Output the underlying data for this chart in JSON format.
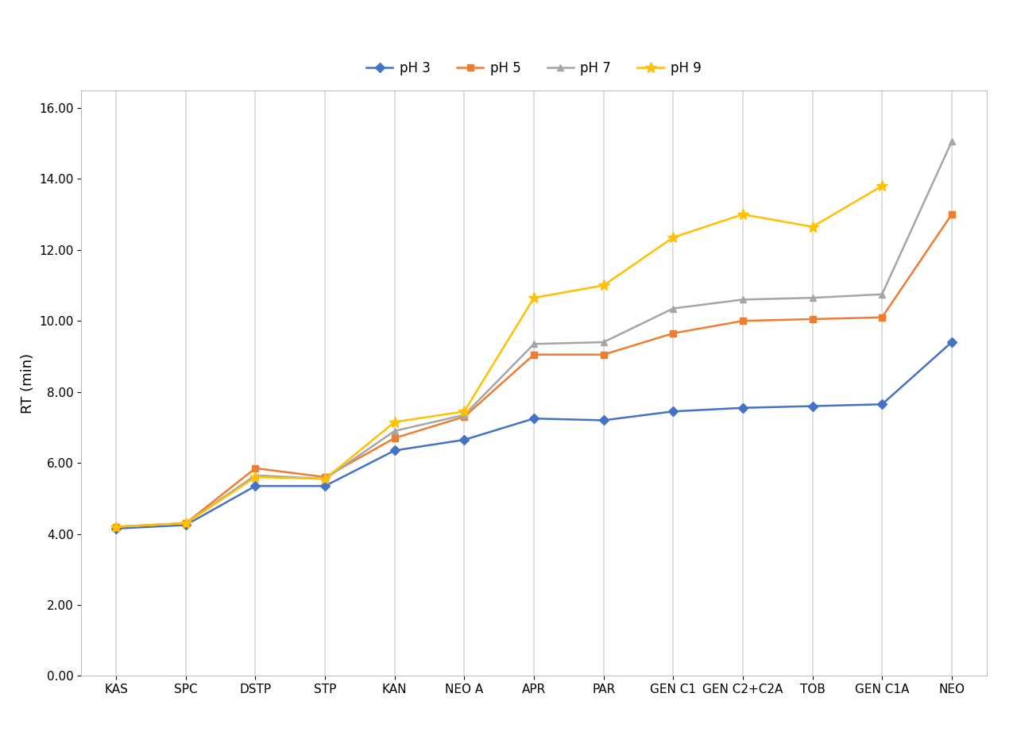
{
  "categories": [
    "KAS",
    "SPC",
    "DSTP",
    "STP",
    "KAN",
    "NEO A",
    "APR",
    "PAR",
    "GEN C1",
    "GEN C2+C2A",
    "TOB",
    "GEN C1A",
    "NEO"
  ],
  "series": {
    "pH 3": [
      4.15,
      4.25,
      5.35,
      5.35,
      6.35,
      6.65,
      7.25,
      7.2,
      7.45,
      7.55,
      7.6,
      7.65,
      9.4
    ],
    "pH 5": [
      4.2,
      4.3,
      5.85,
      5.6,
      6.7,
      7.3,
      9.05,
      9.05,
      9.65,
      10.0,
      10.05,
      10.1,
      13.0
    ],
    "pH 7": [
      4.2,
      4.3,
      5.65,
      5.55,
      6.9,
      7.35,
      9.35,
      9.4,
      10.35,
      10.6,
      10.65,
      10.75,
      15.05
    ],
    "pH 9": [
      4.2,
      4.3,
      5.6,
      5.55,
      7.15,
      7.45,
      10.65,
      11.0,
      12.35,
      13.0,
      12.65,
      13.8,
      null
    ]
  },
  "legend_labels": [
    "pH 3",
    "pH 5",
    "pH 7",
    "pH 9"
  ],
  "colors": {
    "pH 3": "#4472C4",
    "pH 5": "#ED7D31",
    "pH 7": "#A5A5A5",
    "pH 9": "#FFC000"
  },
  "markers": {
    "pH 3": "D",
    "pH 5": "s",
    "pH 7": "^",
    "pH 9": "*"
  },
  "ylabel": "RT (min)",
  "ylim": [
    0,
    16.5
  ],
  "yticks": [
    0.0,
    2.0,
    4.0,
    6.0,
    8.0,
    10.0,
    12.0,
    14.0,
    16.0
  ],
  "legend_fontsize": 12,
  "axis_fontsize": 13,
  "tick_fontsize": 11,
  "background_color": "#FFFFFF",
  "plot_bg_color": "#FFFFFF",
  "marker_size": 6,
  "line_width": 1.8
}
